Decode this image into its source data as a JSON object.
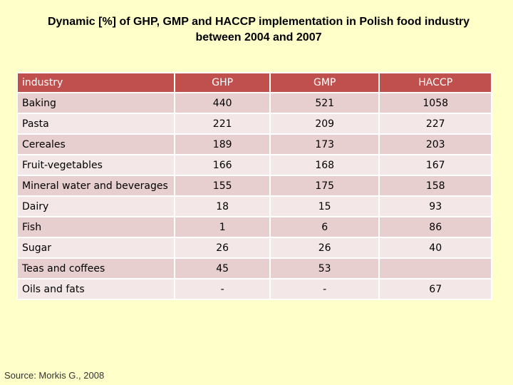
{
  "title": {
    "line1": "Dynamic [%] of GHP, GMP and HACCP implementation in Polish food industry",
    "line2": "between 2004 and 2007"
  },
  "source": "Source: Morkis G., 2008",
  "colors": {
    "header": "#c0504d",
    "row_dark": "#e8cfcf",
    "row_light": "#f3e7e7",
    "background": "#ffffc9"
  },
  "chart_data": {
    "type": "table",
    "title": "Dynamic [%] of GHP, GMP and HACCP implementation in Polish food industry between 2004 and 2007",
    "columns": [
      "industry",
      "GHP",
      "GMP",
      "HACCP"
    ],
    "rows": [
      {
        "industry": "Baking",
        "GHP": "440",
        "GMP": "521",
        "HACCP": "1058"
      },
      {
        "industry": "Pasta",
        "GHP": "221",
        "GMP": "209",
        "HACCP": "227"
      },
      {
        "industry": "Cereales",
        "GHP": "189",
        "GMP": "173",
        "HACCP": "203"
      },
      {
        "industry": "Fruit-vegetables",
        "GHP": "166",
        "GMP": "168",
        "HACCP": "167"
      },
      {
        "industry": "Mineral water and beverages",
        "GHP": "155",
        "GMP": "175",
        "HACCP": "158"
      },
      {
        "industry": "Dairy",
        "GHP": "18",
        "GMP": "15",
        "HACCP": "93"
      },
      {
        "industry": "Fish",
        "GHP": "1",
        "GMP": "6",
        "HACCP": "86"
      },
      {
        "industry": "Sugar",
        "GHP": "26",
        "GMP": "26",
        "HACCP": "40"
      },
      {
        "industry": "Teas and coffees",
        "GHP": "45",
        "GMP": "53",
        "HACCP": ""
      },
      {
        "industry": "Oils and fats",
        "GHP": "-",
        "GMP": "-",
        "HACCP": "67"
      }
    ]
  }
}
